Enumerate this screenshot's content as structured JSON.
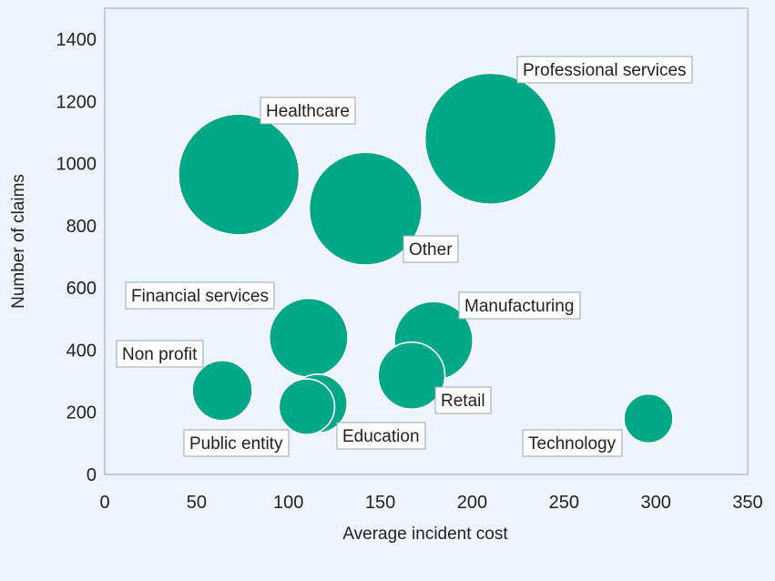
{
  "chart_data": {
    "type": "scatter",
    "variant": "bubble",
    "title": "",
    "xlabel": "Average incident cost",
    "ylabel": "Number of claims",
    "xlim": [
      0,
      350
    ],
    "ylim": [
      0,
      1500
    ],
    "x_ticks": [
      "0",
      "50",
      "100",
      "150",
      "200",
      "250",
      "300",
      "350"
    ],
    "y_ticks": [
      "0",
      "200",
      "400",
      "600",
      "800",
      "1000",
      "1200",
      "1400"
    ],
    "grid": false,
    "legend": "none",
    "bubble_color": "#00a888",
    "series": [
      {
        "points": [
          {
            "label": "Professional services",
            "x": 210,
            "y": 1080,
            "size": 100
          },
          {
            "label": "Healthcare",
            "x": 73,
            "y": 965,
            "size": 85
          },
          {
            "label": "Other",
            "x": 142,
            "y": 855,
            "size": 74
          },
          {
            "label": "Financial services",
            "x": 111,
            "y": 440,
            "size": 36
          },
          {
            "label": "Manufacturing",
            "x": 179,
            "y": 430,
            "size": 36
          },
          {
            "label": "Retail",
            "x": 167,
            "y": 318,
            "size": 26
          },
          {
            "label": "Non profit",
            "x": 64,
            "y": 270,
            "size": 21
          },
          {
            "label": "Education",
            "x": 116,
            "y": 228,
            "size": 20
          },
          {
            "label": "Public entity",
            "x": 110,
            "y": 218,
            "size": 18
          },
          {
            "label": "Technology",
            "x": 296,
            "y": 180,
            "size": 14
          }
        ]
      }
    ]
  }
}
